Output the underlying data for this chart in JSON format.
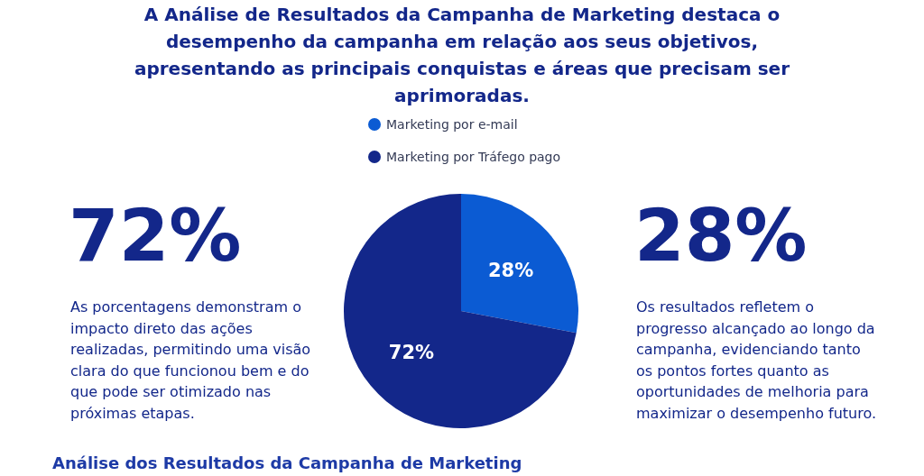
{
  "chart_data": {
    "type": "pie",
    "title": "A Análise de Resultados da Campanha de Marketing destaca o\ndesempenho da campanha em relação aos seus objetivos,\napresentando as principais conquistas e áreas que precisam ser\naprimoradas.",
    "categories": [
      "Marketing por e-mail",
      "Marketing por Tráfego pago"
    ],
    "values": [
      28,
      72
    ],
    "colors": [
      "#0b5bd3",
      "#13278a"
    ],
    "value_labels": [
      "28%",
      "72%"
    ],
    "legend": "top",
    "annotations": [
      "72%",
      "As porcentagens demonstram o\nimpacto direto das ações\nrealizadas, permitindo uma visão\nclara do que funcionou bem e do\nque pode ser otimizado nas\npróximas etapas.",
      "28%",
      "Os resultados refletem o\nprogresso alcançado ao longo da\ncampanha, evidenciando tanto\nos pontos fortes quanto as\noportunidades de melhoria para\nmaximizar o desempenho futuro.",
      "Análise dos Resultados da Campanha de Marketing"
    ]
  }
}
